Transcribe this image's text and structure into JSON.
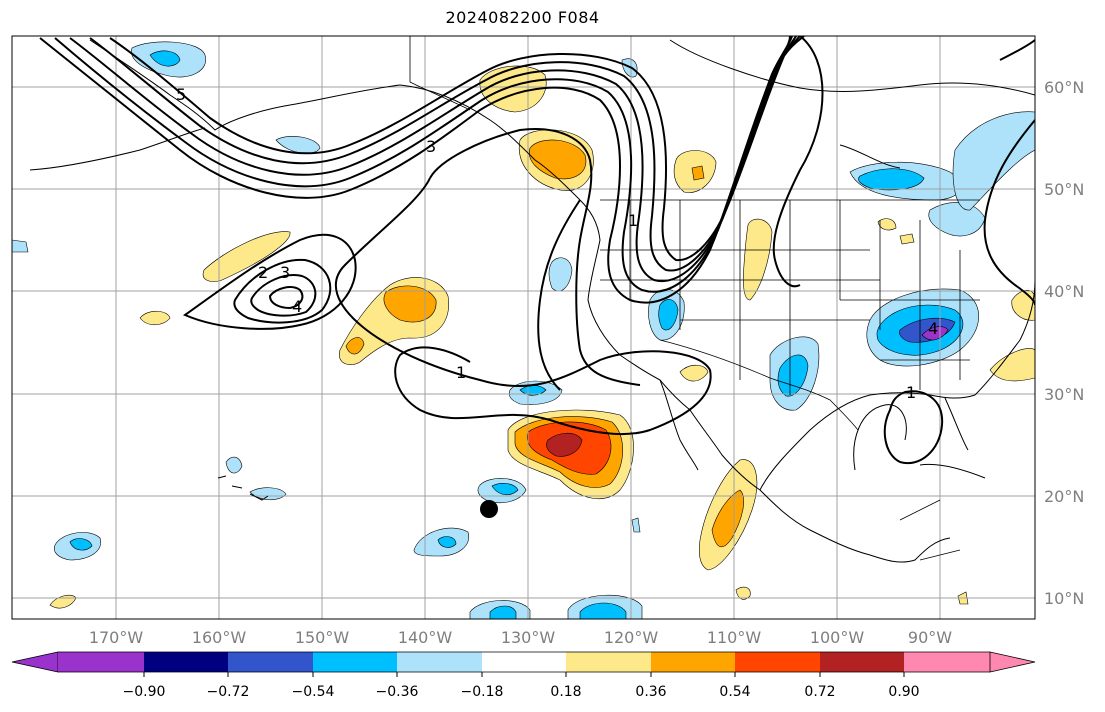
{
  "title": "2024082200 F084",
  "lon_labels": [
    "170°W",
    "160°W",
    "150°W",
    "140°W",
    "130°W",
    "120°W",
    "110°W",
    "100°W",
    "90°W"
  ],
  "lat_labels": [
    "60°N",
    "50°N",
    "40°N",
    "30°N",
    "20°N",
    "10°N"
  ],
  "colorbar": {
    "colors": [
      "#9a33cc",
      "#000080",
      "#3355cc",
      "#00bfff",
      "#aee2fa",
      "#ffffff",
      "#fde88a",
      "#ffa500",
      "#ff4500",
      "#b22222",
      "#ff88b0"
    ],
    "tick_labels": [
      "−0.90",
      "−0.72",
      "−0.54",
      "−0.36",
      "−0.18",
      "0.18",
      "0.36",
      "0.54",
      "0.72",
      "0.90"
    ]
  },
  "contour_labels": [
    "5",
    "3",
    "2",
    "3",
    "4",
    "1",
    "1",
    "4",
    "1"
  ],
  "colors": {
    "grid": "#a0a0a0",
    "coast": "#000000",
    "contour": "#000000"
  }
}
